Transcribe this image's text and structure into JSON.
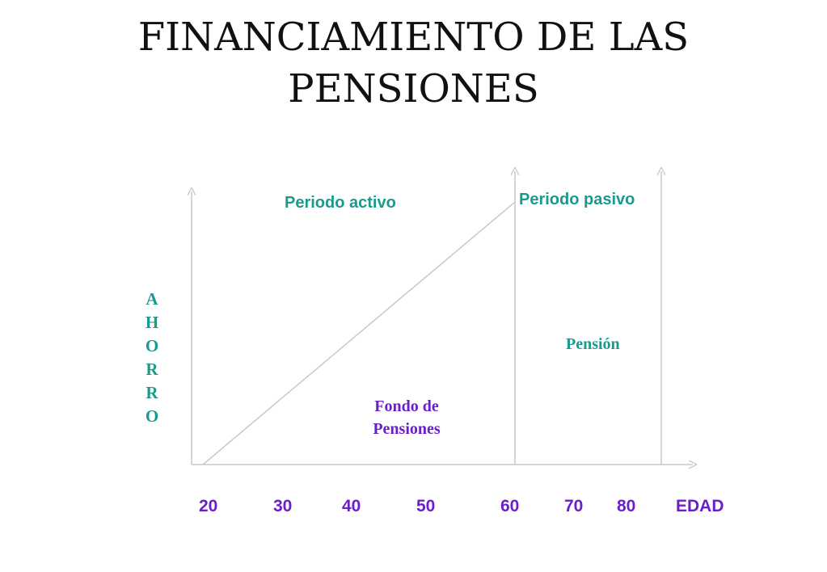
{
  "title_line1": "FINANCIAMIENTO DE LAS",
  "title_line2": "PENSIONES",
  "labels": {
    "active_period": "Periodo activo",
    "passive_period": "Periodo pasivo",
    "pension": "Pensión",
    "fund_line1": "Fondo de",
    "fund_line2": "Pensiones"
  },
  "y_axis_letters": [
    "A",
    "H",
    "O",
    "R",
    "R",
    "O"
  ],
  "x_axis": {
    "ticks": [
      "20",
      "30",
      "40",
      "50",
      "60",
      "70",
      "80"
    ],
    "unit_label": "EDAD"
  },
  "colors": {
    "teal": "#1a9a8e",
    "purple": "#6a1fc8",
    "axis_gray": "#c8c8c8"
  }
}
